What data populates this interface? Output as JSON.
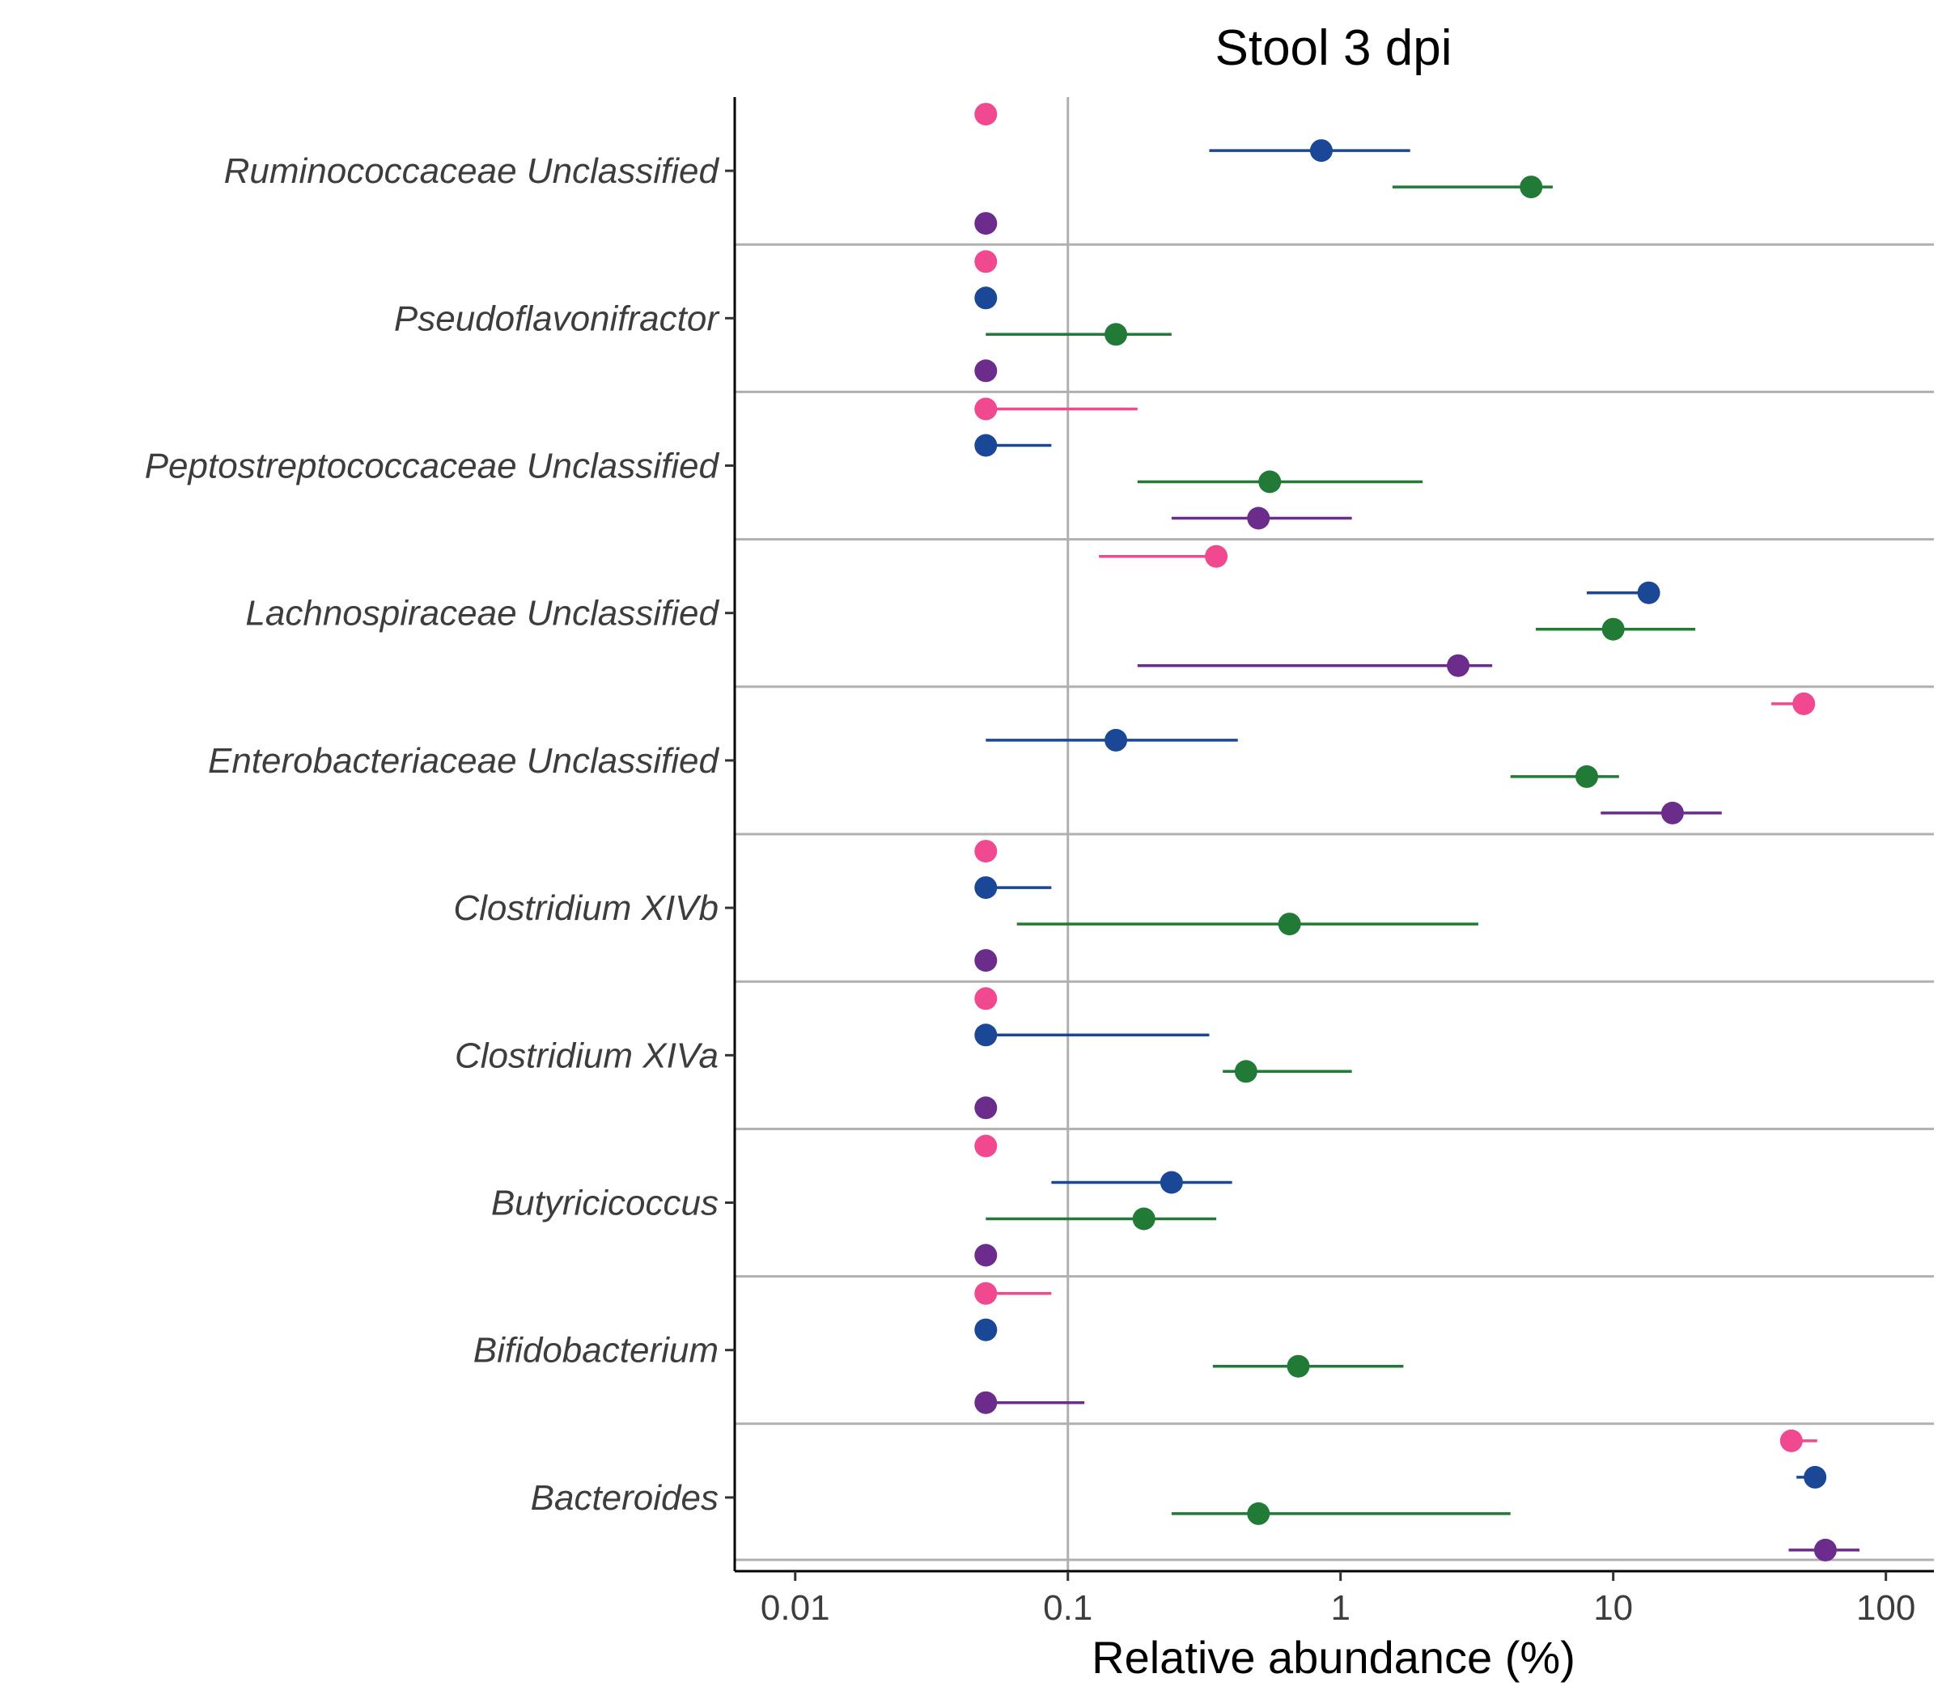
{
  "chart_data": {
    "type": "scatter",
    "title": "Stool 3 dpi",
    "xlabel": "Relative abundance (%)",
    "ylabel": "",
    "x_scale": "log10",
    "xlim": [
      0.006,
      150
    ],
    "xticks": [
      {
        "value": 0.01,
        "label": "0.01"
      },
      {
        "value": 0.1,
        "label": "0.1"
      },
      {
        "value": 1,
        "label": "1"
      },
      {
        "value": 10,
        "label": "10"
      },
      {
        "value": 100,
        "label": "100"
      }
    ],
    "reference_line_x": 0.1,
    "legend": "none",
    "categories": [
      "Ruminococcaceae Unclassified",
      "Pseudoflavonifractor",
      "Peptostreptococcaceae Unclassified",
      "Lachnospiraceae Unclassified",
      "Enterobacteriaceae Unclassified",
      "Clostridium XIVb",
      "Clostridium XIVa",
      "Butyricicoccus",
      "Bifidobacterium",
      "Bacteroides"
    ],
    "series": [
      {
        "color": "#f0498f",
        "values": [
          0.05,
          0.05,
          0.05,
          0.35,
          50,
          0.05,
          0.05,
          0.05,
          0.05,
          45
        ],
        "lower": [
          null,
          null,
          null,
          0.13,
          38,
          null,
          null,
          null,
          null,
          42
        ],
        "upper": [
          null,
          null,
          0.18,
          null,
          null,
          null,
          null,
          null,
          0.087,
          56
        ]
      },
      {
        "color": "#1a4796",
        "values": [
          0.85,
          0.05,
          0.05,
          13.5,
          0.15,
          0.05,
          0.05,
          0.24,
          0.05,
          55
        ],
        "lower": [
          0.33,
          null,
          null,
          8,
          0.05,
          null,
          null,
          0.087,
          null,
          47
        ],
        "upper": [
          1.8,
          null,
          0.087,
          null,
          0.42,
          0.087,
          0.33,
          0.4,
          null,
          null
        ]
      },
      {
        "color": "#217a35",
        "values": [
          5,
          0.15,
          0.55,
          10,
          8,
          0.65,
          0.45,
          0.19,
          0.7,
          0.5
        ],
        "lower": [
          1.55,
          0.05,
          0.18,
          5.2,
          4.2,
          0.065,
          0.37,
          0.05,
          0.34,
          0.24
        ],
        "upper": [
          6,
          0.24,
          2,
          20,
          10.5,
          3.2,
          1.1,
          0.35,
          1.7,
          4.2
        ]
      },
      {
        "color": "#6b2c8c",
        "values": [
          0.05,
          0.05,
          0.5,
          2.7,
          16.5,
          0.05,
          0.05,
          0.05,
          0.05,
          60
        ],
        "lower": [
          null,
          null,
          0.24,
          0.18,
          9,
          null,
          null,
          null,
          null,
          44
        ],
        "upper": [
          null,
          null,
          1.1,
          3.6,
          25,
          null,
          null,
          null,
          0.115,
          80
        ]
      }
    ]
  }
}
